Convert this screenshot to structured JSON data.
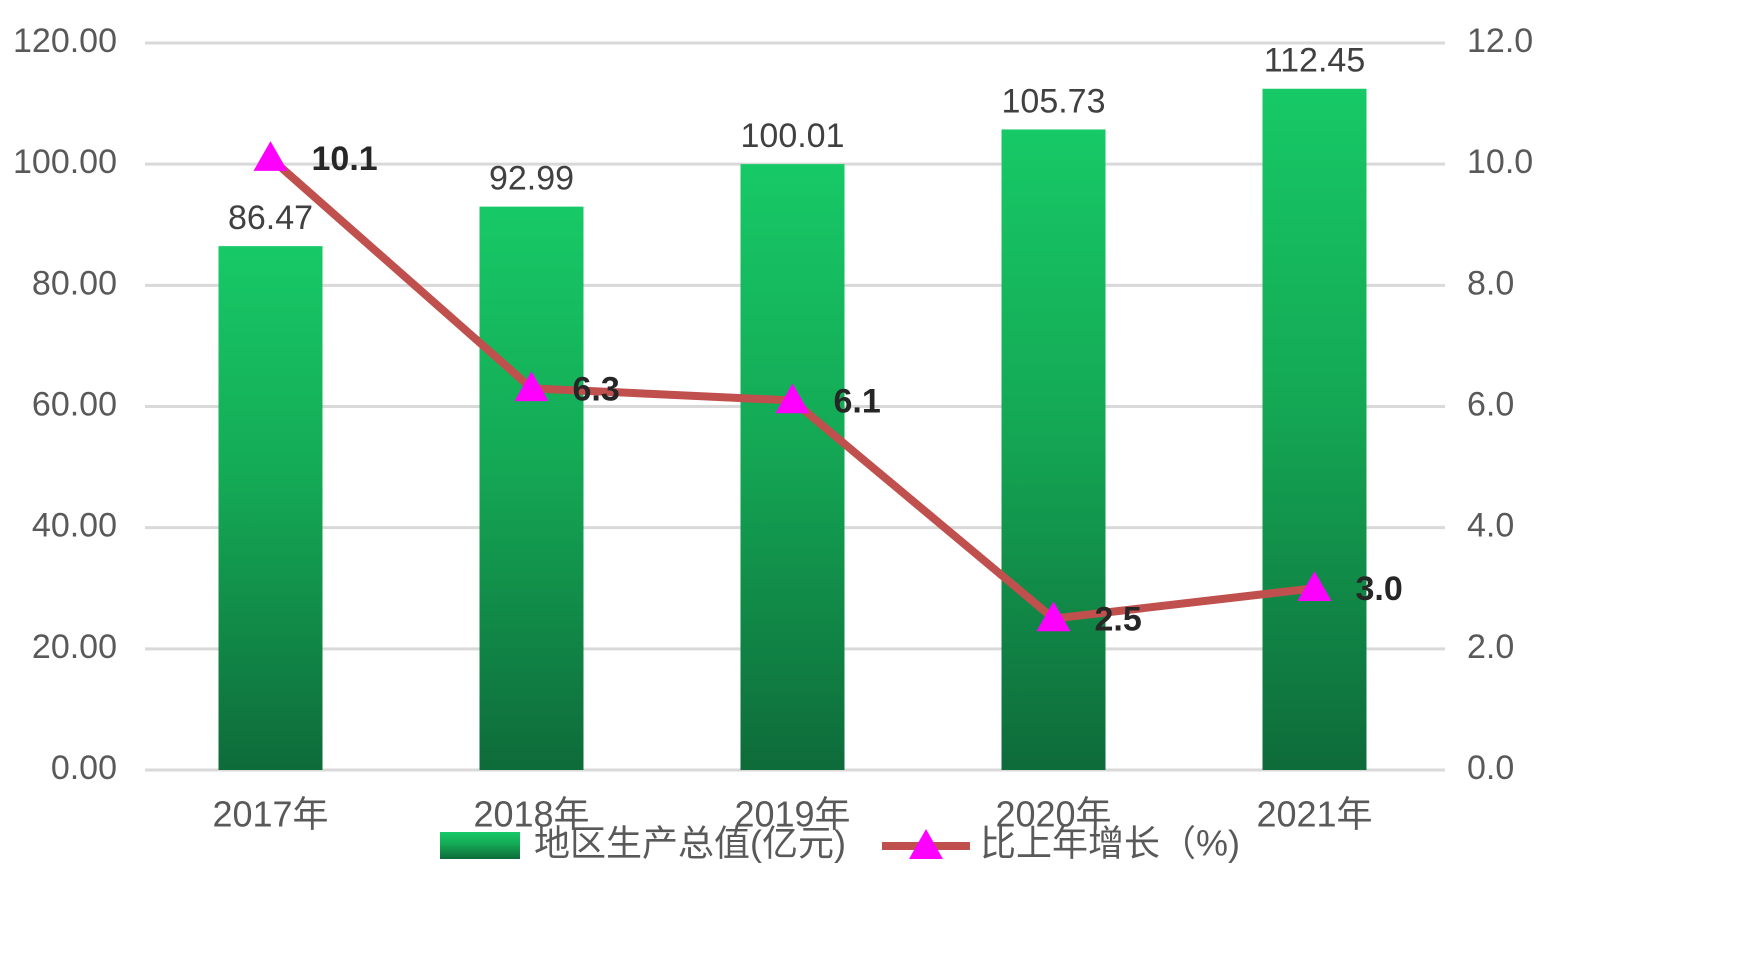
{
  "chart_data": {
    "type": "bar",
    "categories": [
      "2017年",
      "2018年",
      "2019年",
      "2020年",
      "2021年"
    ],
    "series": [
      {
        "name": "地区生产总值(亿元)",
        "type": "bar",
        "axis": "left",
        "values": [
          86.47,
          92.99,
          100.01,
          105.73,
          112.45
        ],
        "value_labels": [
          "86.47",
          "92.99",
          "100.01",
          "105.73",
          "112.45"
        ],
        "color_top": "#17c967",
        "color_bottom": "#0e6b3a"
      },
      {
        "name": "比上年增长（%)",
        "type": "line",
        "axis": "right",
        "values": [
          10.1,
          6.3,
          6.1,
          2.5,
          3.0
        ],
        "value_labels": [
          "10.1",
          "6.3",
          "6.1",
          "2.5",
          "3.0"
        ],
        "line_color": "#c0504d",
        "marker": "triangle",
        "marker_color": "#ff00ff"
      }
    ],
    "y_left": {
      "range": [
        0,
        120
      ],
      "ticks": [
        "0.00",
        "20.00",
        "40.00",
        "60.00",
        "80.00",
        "100.00",
        "120.00"
      ]
    },
    "y_right": {
      "range": [
        0,
        12
      ],
      "ticks": [
        "0.0",
        "2.0",
        "4.0",
        "6.0",
        "8.0",
        "10.0",
        "12.0"
      ]
    },
    "grid": true,
    "grid_color": "#d9d9d9",
    "legend_position": "bottom"
  }
}
